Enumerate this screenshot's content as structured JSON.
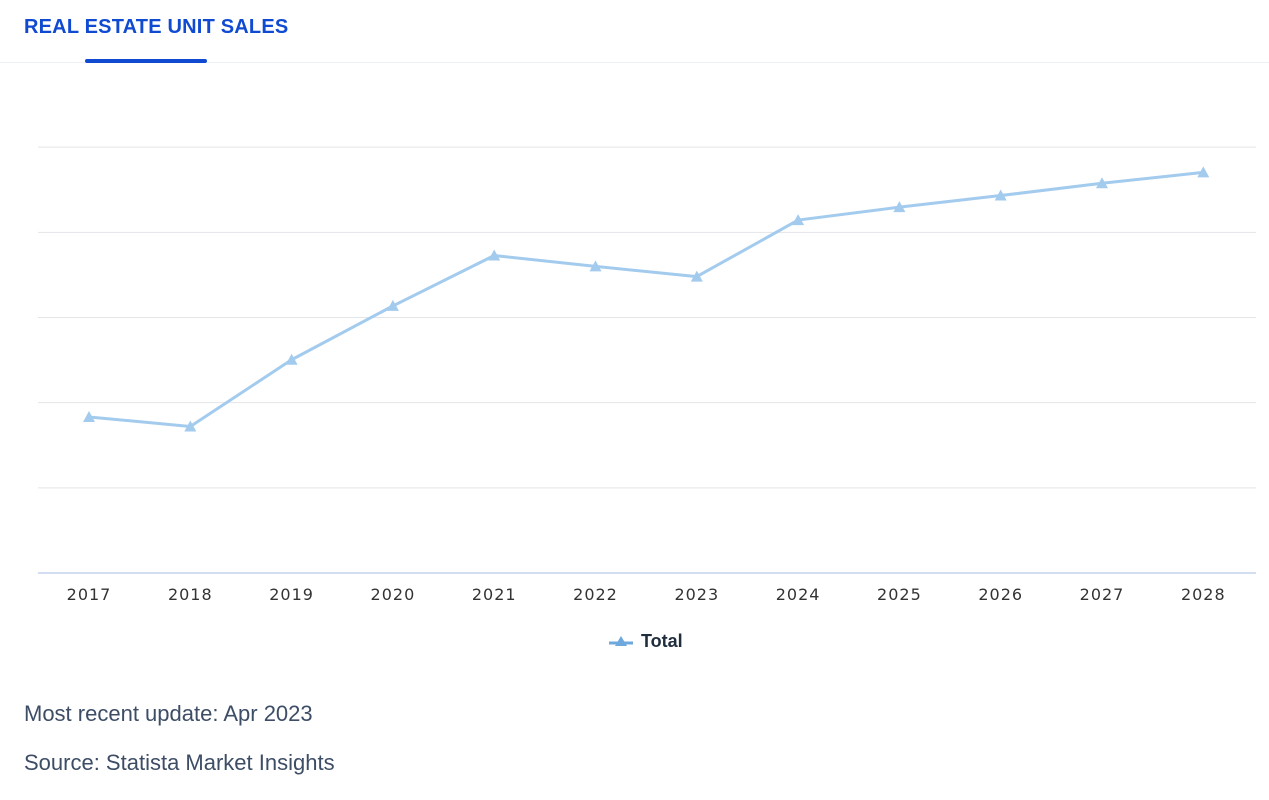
{
  "tab": {
    "label": "REAL ESTATE UNIT SALES"
  },
  "chart_data": {
    "type": "line",
    "title": "",
    "xlabel": "",
    "ylabel": "",
    "categories": [
      "2017",
      "2018",
      "2019",
      "2020",
      "2021",
      "2022",
      "2023",
      "2024",
      "2025",
      "2026",
      "2027",
      "2028"
    ],
    "series": [
      {
        "name": "Total",
        "values": [
          22.9,
          21.5,
          31.3,
          39.2,
          46.6,
          45.0,
          43.5,
          51.8,
          53.7,
          55.4,
          57.2,
          58.8
        ],
        "color": "#a3cbee",
        "marker": "triangle"
      }
    ],
    "ylim": [
      0,
      75
    ],
    "y_tick_labels_visible": false,
    "grid": true,
    "legend_position": "bottom-center"
  },
  "legend": {
    "label": "Total"
  },
  "footer": {
    "update": "Most recent update: Apr 2023",
    "source": "Source: Statista Market Insights"
  },
  "colors": {
    "accent": "#0f4ad1",
    "series": "#a3cbee",
    "legend_marker": "#6fa8dc",
    "gridline": "#e3e5e8",
    "axis": "#c5d3ef",
    "tick_label": "#333333"
  }
}
